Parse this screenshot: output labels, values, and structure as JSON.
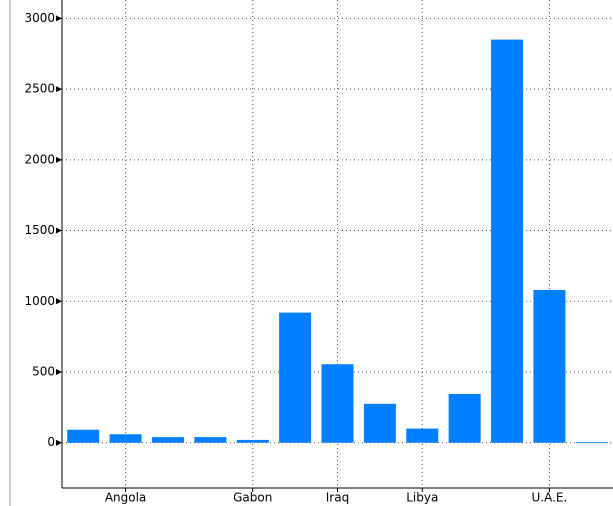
{
  "chart_data": {
    "type": "bar",
    "categories": [
      null,
      "Angola",
      null,
      null,
      "Gabon",
      null,
      "Iraq",
      null,
      "Libya",
      null,
      null,
      "U.A.E.",
      null
    ],
    "values": [
      92,
      60,
      40,
      40,
      20,
      920,
      555,
      275,
      100,
      345,
      2850,
      1080,
      5
    ],
    "color": "#0080ff",
    "ylim": [
      -320,
      3130
    ],
    "yticks": [
      0,
      500,
      1000,
      1500,
      2000,
      2500,
      3000
    ],
    "grid": true
  }
}
